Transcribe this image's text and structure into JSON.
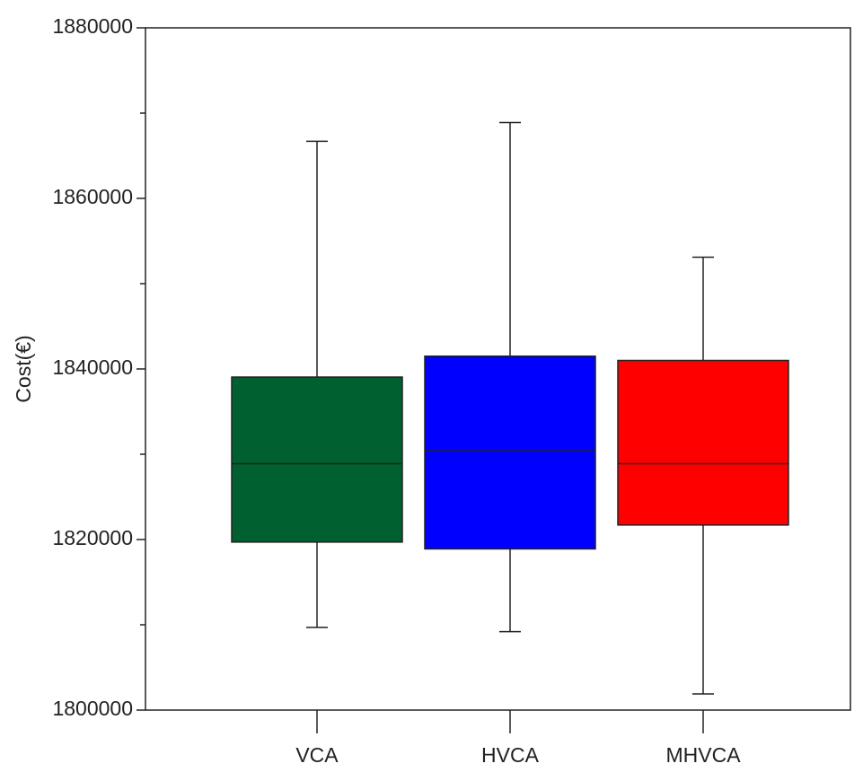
{
  "chart_data": {
    "type": "box",
    "y_label": "Cost(€)",
    "categories": [
      "VCA",
      "HVCA",
      "MHVCA"
    ],
    "colors": [
      "#006030",
      "#0000ff",
      "#ff0000"
    ],
    "whisker_low": [
      1809700,
      1809200,
      1801900
    ],
    "q1": [
      1819700,
      1818900,
      1821700
    ],
    "median": [
      1828900,
      1830400,
      1828900
    ],
    "q3": [
      1839050,
      1841500,
      1841000
    ],
    "whisker_high": [
      1866700,
      1868900,
      1853100
    ],
    "ylim": [
      1800000,
      1880000
    ],
    "yticks": [
      1800000,
      1820000,
      1840000,
      1860000,
      1880000
    ],
    "yminorticks": [
      1810000,
      1830000,
      1850000,
      1870000
    ]
  }
}
